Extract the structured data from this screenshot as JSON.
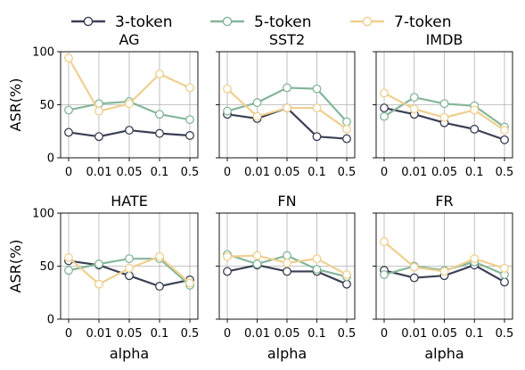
{
  "chart_data": {
    "type": "line",
    "legend": {
      "placement": "top",
      "entries": [
        {
          "name": "3-token",
          "color": "#3b3f54"
        },
        {
          "name": "5-token",
          "color": "#85b59a"
        },
        {
          "name": "7-token",
          "color": "#efcf8f"
        }
      ]
    },
    "x_categories": [
      "0",
      "0.01",
      "0.05",
      "0.1",
      "0.5"
    ],
    "xlabel": "alpha",
    "ylabel": "ASR(%)",
    "ylim": [
      0,
      100
    ],
    "yticks": [
      "0",
      "50",
      "100"
    ],
    "grid": true,
    "panels": [
      {
        "title": "AG",
        "series": [
          {
            "name": "3-token",
            "values": [
              24,
              20,
              26,
              23,
              21
            ]
          },
          {
            "name": "5-token",
            "values": [
              45,
              51,
              53,
              41,
              36
            ]
          },
          {
            "name": "7-token",
            "values": [
              94,
              44,
              51,
              79,
              66
            ]
          }
        ]
      },
      {
        "title": "SST2",
        "series": [
          {
            "name": "3-token",
            "values": [
              41,
              37,
              47,
              20,
              18
            ]
          },
          {
            "name": "5-token",
            "values": [
              44,
              52,
              66,
              65,
              34
            ]
          },
          {
            "name": "7-token",
            "values": [
              65,
              39,
              47,
              47,
              27
            ]
          }
        ]
      },
      {
        "title": "IMDB",
        "series": [
          {
            "name": "3-token",
            "values": [
              47,
              41,
              33,
              27,
              17
            ]
          },
          {
            "name": "5-token",
            "values": [
              39,
              57,
              51,
              49,
              29
            ]
          },
          {
            "name": "7-token",
            "values": [
              61,
              46,
              38,
              45,
              26
            ]
          }
        ]
      },
      {
        "title": "HATE",
        "series": [
          {
            "name": "3-token",
            "values": [
              55,
              51,
              41,
              31,
              37
            ]
          },
          {
            "name": "5-token",
            "values": [
              46,
              52,
              57,
              57,
              32
            ]
          },
          {
            "name": "7-token",
            "values": [
              58,
              33,
              48,
              59,
              34
            ]
          }
        ]
      },
      {
        "title": "FN",
        "series": [
          {
            "name": "3-token",
            "values": [
              45,
              51,
              45,
              45,
              33
            ]
          },
          {
            "name": "5-token",
            "values": [
              61,
              52,
              60,
              47,
              40
            ]
          },
          {
            "name": "7-token",
            "values": [
              59,
              60,
              53,
              57,
              42
            ]
          }
        ]
      },
      {
        "title": "FR",
        "series": [
          {
            "name": "3-token",
            "values": [
              46,
              39,
              41,
              51,
              35
            ]
          },
          {
            "name": "5-token",
            "values": [
              42,
              50,
              46,
              54,
              42
            ]
          },
          {
            "name": "7-token",
            "values": [
              73,
              49,
              45,
              57,
              48
            ]
          }
        ]
      }
    ]
  }
}
